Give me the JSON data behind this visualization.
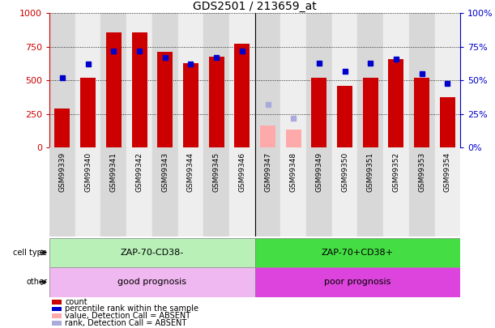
{
  "title": "GDS2501 / 213659_at",
  "samples": [
    "GSM99339",
    "GSM99340",
    "GSM99341",
    "GSM99342",
    "GSM99343",
    "GSM99344",
    "GSM99345",
    "GSM99346",
    "GSM99347",
    "GSM99348",
    "GSM99349",
    "GSM99350",
    "GSM99351",
    "GSM99352",
    "GSM99353",
    "GSM99354"
  ],
  "count_values": [
    290,
    520,
    855,
    855,
    715,
    625,
    675,
    770,
    null,
    null,
    520,
    460,
    520,
    660,
    520,
    375
  ],
  "count_absent": [
    null,
    null,
    null,
    null,
    null,
    null,
    null,
    null,
    165,
    135,
    null,
    null,
    null,
    null,
    null,
    null
  ],
  "rank_values": [
    52,
    62,
    72,
    72,
    67,
    62,
    67,
    72,
    null,
    null,
    63,
    57,
    63,
    66,
    55,
    48
  ],
  "rank_absent": [
    null,
    null,
    null,
    null,
    null,
    null,
    null,
    null,
    32,
    22,
    null,
    null,
    null,
    null,
    null,
    null
  ],
  "ylim_left": [
    0,
    1000
  ],
  "ylim_right": [
    0,
    100
  ],
  "yticks_left": [
    0,
    250,
    500,
    750,
    1000
  ],
  "yticks_right": [
    0,
    25,
    50,
    75,
    100
  ],
  "bar_color": "#cc0000",
  "bar_absent_color": "#ffaaaa",
  "rank_color": "#0000cc",
  "rank_absent_color": "#aaaadd",
  "cell_type_labels": [
    "ZAP-70-CD38-",
    "ZAP-70+CD38+"
  ],
  "cell_type_color_left": "#b8f0b8",
  "cell_type_color_right": "#44dd44",
  "other_labels": [
    "good prognosis",
    "poor prognosis"
  ],
  "other_color_left": "#f0b8f0",
  "other_color_right": "#dd44dd",
  "split_at": 8,
  "legend_items": [
    {
      "label": "count",
      "color": "#cc0000"
    },
    {
      "label": "percentile rank within the sample",
      "color": "#0000cc"
    },
    {
      "label": "value, Detection Call = ABSENT",
      "color": "#ffaaaa"
    },
    {
      "label": "rank, Detection Call = ABSENT",
      "color": "#aaaadd"
    }
  ],
  "left_axis_color": "#cc0000",
  "right_axis_color": "#0000cc",
  "grid_linestyle": "dotted"
}
